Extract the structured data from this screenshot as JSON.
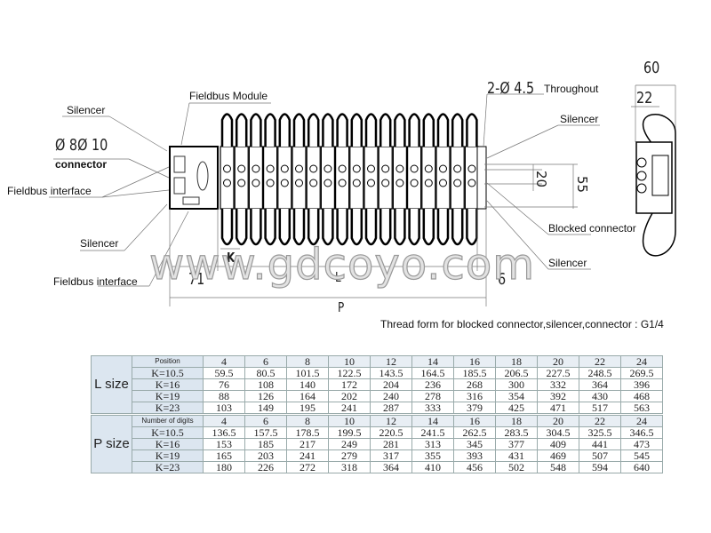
{
  "labels": {
    "fieldbus_module": "Fieldbus Module",
    "silencer_top_left": "Silencer",
    "connector_dims": "Ø 8Ø 10",
    "connector": "connector",
    "fieldbus_interface_1": "Fieldbus interface",
    "silencer_bottom_left": "Silencer",
    "fieldbus_interface_2": "Fieldbus interface",
    "through_hole": "2-Ø 4.5",
    "throughout": "Throughout",
    "silencer_right": "Silencer",
    "blocked_connector": "Blocked connector",
    "silencer_right_bottom": "Silencer"
  },
  "dimensions": {
    "d60": "60",
    "d22": "22",
    "d20": "20",
    "d55": "55",
    "K": "K",
    "d71": "71",
    "L": "L",
    "d6": "6",
    "P": "P"
  },
  "note": "Thread form for blocked connector,silencer,connector : G1/4",
  "watermark": "www.gdcoyo.com",
  "l_table": {
    "title": "L size",
    "header_label": "Position",
    "columns": [
      "4",
      "6",
      "8",
      "10",
      "12",
      "14",
      "16",
      "18",
      "20",
      "22",
      "24"
    ],
    "rows": [
      {
        "k": "K=10.5",
        "values": [
          "59.5",
          "80.5",
          "101.5",
          "122.5",
          "143.5",
          "164.5",
          "185.5",
          "206.5",
          "227.5",
          "248.5",
          "269.5"
        ]
      },
      {
        "k": "K=16",
        "values": [
          "76",
          "108",
          "140",
          "172",
          "204",
          "236",
          "268",
          "300",
          "332",
          "364",
          "396"
        ]
      },
      {
        "k": "K=19",
        "values": [
          "88",
          "126",
          "164",
          "202",
          "240",
          "278",
          "316",
          "354",
          "392",
          "430",
          "468"
        ]
      },
      {
        "k": "K=23",
        "values": [
          "103",
          "149",
          "195",
          "241",
          "287",
          "333",
          "379",
          "425",
          "471",
          "517",
          "563"
        ]
      }
    ]
  },
  "p_table": {
    "title": "P size",
    "header_label": "Number of digits",
    "columns": [
      "4",
      "6",
      "8",
      "10",
      "12",
      "14",
      "16",
      "18",
      "20",
      "22",
      "24"
    ],
    "rows": [
      {
        "k": "K=10.5",
        "values": [
          "136.5",
          "157.5",
          "178.5",
          "199.5",
          "220.5",
          "241.5",
          "262.5",
          "283.5",
          "304.5",
          "325.5",
          "346.5"
        ]
      },
      {
        "k": "K=16",
        "values": [
          "153",
          "185",
          "217",
          "249",
          "281",
          "313",
          "345",
          "377",
          "409",
          "441",
          "473"
        ]
      },
      {
        "k": "K=19",
        "values": [
          "165",
          "203",
          "241",
          "279",
          "317",
          "355",
          "393",
          "431",
          "469",
          "507",
          "545"
        ]
      },
      {
        "k": "K=23",
        "values": [
          "180",
          "226",
          "272",
          "318",
          "364",
          "410",
          "456",
          "502",
          "548",
          "594",
          "640"
        ]
      }
    ]
  }
}
